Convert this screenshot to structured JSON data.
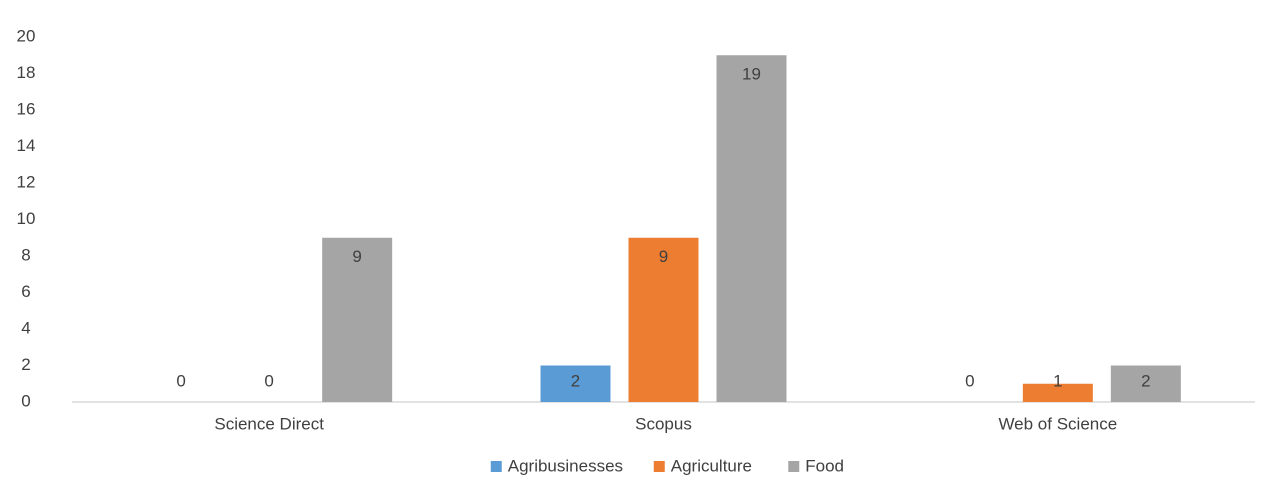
{
  "chart_data": {
    "type": "bar",
    "categories": [
      "Science Direct",
      "Scopus",
      "Web of Science"
    ],
    "series": [
      {
        "name": "Agribusinesses",
        "color": "#5b9bd5",
        "values": [
          0,
          2,
          0
        ]
      },
      {
        "name": "Agriculture",
        "color": "#ed7d31",
        "values": [
          0,
          9,
          1
        ]
      },
      {
        "name": "Food",
        "color": "#a5a5a5",
        "values": [
          9,
          19,
          2
        ]
      }
    ],
    "ylim": [
      0,
      20
    ],
    "yticks": [
      0,
      2,
      4,
      6,
      8,
      10,
      12,
      14,
      16,
      18,
      20
    ],
    "grid": false,
    "legend": "bottom"
  }
}
